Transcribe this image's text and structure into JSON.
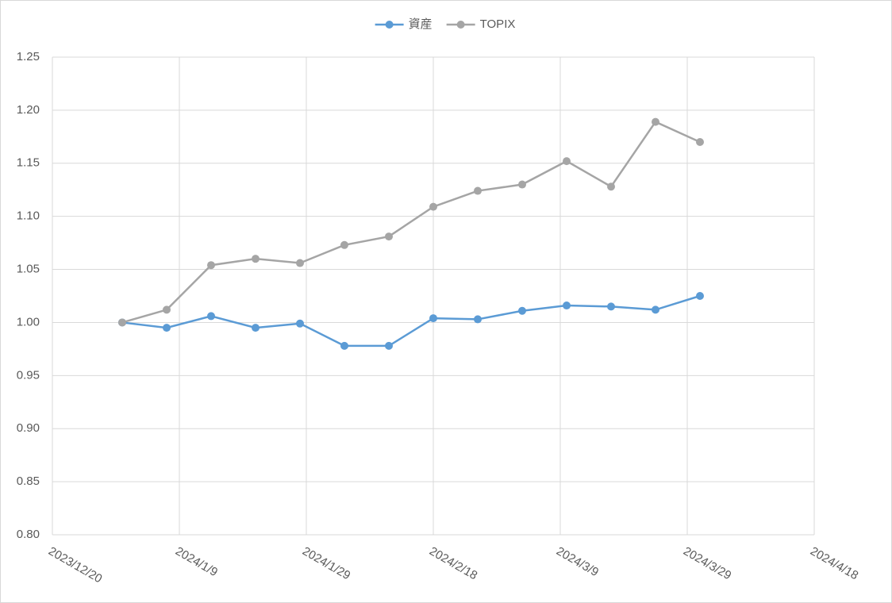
{
  "chart_data": {
    "type": "line",
    "x": [
      "2023/12/31",
      "2024/1/7",
      "2024/1/14",
      "2024/1/21",
      "2024/1/28",
      "2024/2/4",
      "2024/2/11",
      "2024/2/18",
      "2024/2/25",
      "2024/3/3",
      "2024/3/10",
      "2024/3/17",
      "2024/3/24",
      "2024/3/31"
    ],
    "series": [
      {
        "name": "資産",
        "color": "#5b9bd5",
        "values": [
          1.0,
          0.995,
          1.006,
          0.995,
          0.999,
          0.978,
          0.978,
          1.004,
          1.003,
          1.011,
          1.016,
          1.015,
          1.012,
          1.025
        ]
      },
      {
        "name": "TOPIX",
        "color": "#a5a5a5",
        "values": [
          1.0,
          1.012,
          1.054,
          1.06,
          1.056,
          1.073,
          1.081,
          1.109,
          1.124,
          1.13,
          1.152,
          1.128,
          1.189,
          1.17
        ]
      }
    ],
    "xlim": [
      "2023/12/20",
      "2024/4/18"
    ],
    "xticks": [
      "2023/12/20",
      "2024/1/9",
      "2024/1/29",
      "2024/2/18",
      "2024/3/9",
      "2024/3/29",
      "2024/4/18"
    ],
    "ylim": [
      0.8,
      1.25
    ],
    "yticks": [
      {
        "value": 0.8,
        "label": "0.80"
      },
      {
        "value": 0.85,
        "label": "0.85"
      },
      {
        "value": 0.9,
        "label": "0.90"
      },
      {
        "value": 0.95,
        "label": "0.95"
      },
      {
        "value": 1.0,
        "label": "1.00"
      },
      {
        "value": 1.05,
        "label": "1.05"
      },
      {
        "value": 1.1,
        "label": "1.10"
      },
      {
        "value": 1.15,
        "label": "1.15"
      },
      {
        "value": 1.2,
        "label": "1.20"
      },
      {
        "value": 1.25,
        "label": "1.25"
      }
    ],
    "grid": true,
    "legend": "top"
  }
}
